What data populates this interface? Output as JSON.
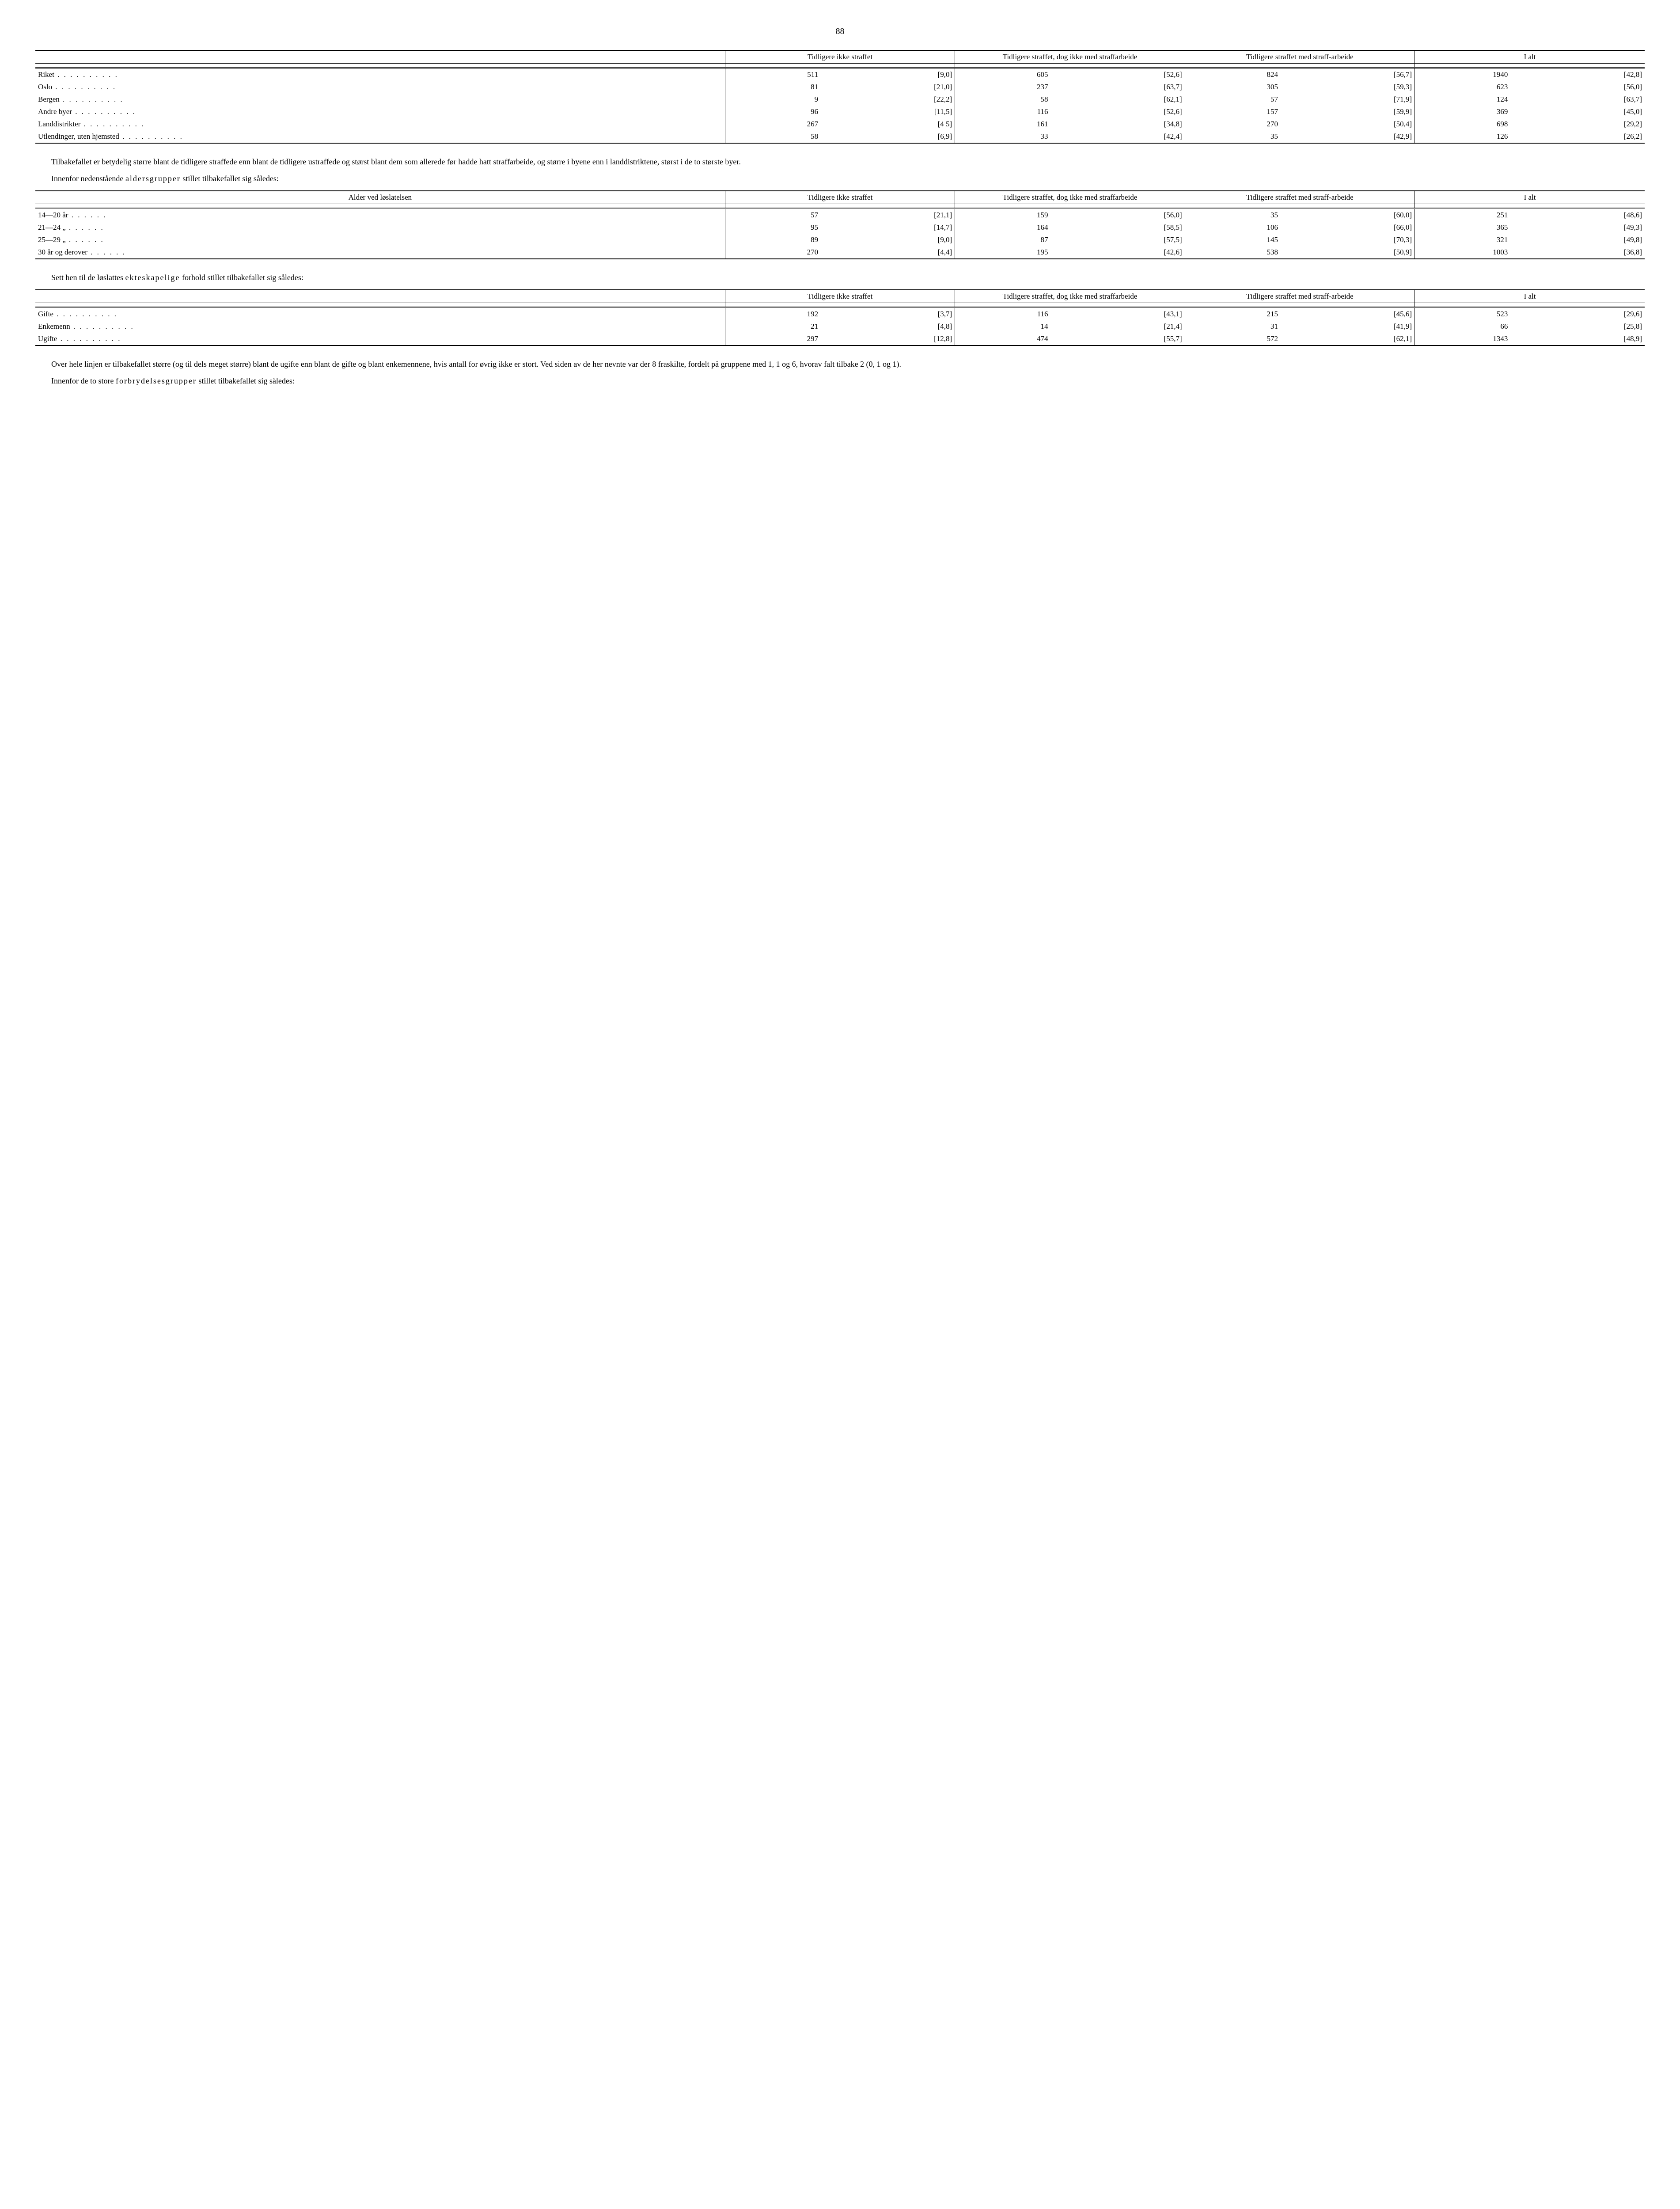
{
  "pageNumber": "88",
  "headers": {
    "col1": "Tidligere ikke straffet",
    "col2": "Tidligere straffet, dog ikke med straffarbeide",
    "col3": "Tidligere straffet med straff-arbeide",
    "col4": "I alt",
    "ageLabel": "Alder ved løslatelsen"
  },
  "table1": {
    "rows": [
      {
        "label": "Riket",
        "n1": "511",
        "p1": "[9,0]",
        "n2": "605",
        "p2": "[52,6]",
        "n3": "824",
        "p3": "[56,7]",
        "n4": "1940",
        "p4": "[42,8]"
      },
      {
        "label": "Oslo",
        "n1": "81",
        "p1": "[21,0]",
        "n2": "237",
        "p2": "[63,7]",
        "n3": "305",
        "p3": "[59,3]",
        "n4": "623",
        "p4": "[56,0]"
      },
      {
        "label": "Bergen",
        "n1": "9",
        "p1": "[22,2]",
        "n2": "58",
        "p2": "[62,1]",
        "n3": "57",
        "p3": "[71,9]",
        "n4": "124",
        "p4": "[63,7]"
      },
      {
        "label": "Andre byer",
        "n1": "96",
        "p1": "[11,5]",
        "n2": "116",
        "p2": "[52,6]",
        "n3": "157",
        "p3": "[59,9]",
        "n4": "369",
        "p4": "[45,0]"
      },
      {
        "label": "Landdistrikter",
        "n1": "267",
        "p1": "[4 5]",
        "n2": "161",
        "p2": "[34,8]",
        "n3": "270",
        "p3": "[50,4]",
        "n4": "698",
        "p4": "[29,2]"
      },
      {
        "label": "Utlendinger, uten hjemsted",
        "n1": "58",
        "p1": "[6,9]",
        "n2": "33",
        "p2": "[42,4]",
        "n3": "35",
        "p3": "[42,9]",
        "n4": "126",
        "p4": "[26,2]"
      }
    ]
  },
  "para1": "Tilbakefallet er betydelig større blant de tidligere straffede enn blant de tidligere ustraffede og størst blant dem som allerede før hadde hatt straffarbeide, og større i byene enn i landdistriktene, størst i de to største byer.",
  "para2a": "Innenfor nedenstående ",
  "para2b": "aldersgrupper",
  "para2c": " stillet tilbakefallet sig således:",
  "table2": {
    "rows": [
      {
        "label": "14—20 år",
        "n1": "57",
        "p1": "[21,1]",
        "n2": "159",
        "p2": "[56,0]",
        "n3": "35",
        "p3": "[60,0]",
        "n4": "251",
        "p4": "[48,6]"
      },
      {
        "label": "21—24 „",
        "n1": "95",
        "p1": "[14,7]",
        "n2": "164",
        "p2": "[58,5]",
        "n3": "106",
        "p3": "[66,0]",
        "n4": "365",
        "p4": "[49,3]"
      },
      {
        "label": "25—29 „",
        "n1": "89",
        "p1": "[9,0]",
        "n2": "87",
        "p2": "[57,5]",
        "n3": "145",
        "p3": "[70,3]",
        "n4": "321",
        "p4": "[49,8]"
      },
      {
        "label": "30 år og derover",
        "n1": "270",
        "p1": "[4,4]",
        "n2": "195",
        "p2": "[42,6]",
        "n3": "538",
        "p3": "[50,9]",
        "n4": "1003",
        "p4": "[36,8]"
      }
    ]
  },
  "para3a": "Sett hen til de løslattes ",
  "para3b": "ekteskapelige",
  "para3c": " forhold stillet tilbakefallet sig således:",
  "table3": {
    "rows": [
      {
        "label": "Gifte",
        "n1": "192",
        "p1": "[3,7]",
        "n2": "116",
        "p2": "[43,1]",
        "n3": "215",
        "p3": "[45,6]",
        "n4": "523",
        "p4": "[29,6]"
      },
      {
        "label": "Enkemenn",
        "n1": "21",
        "p1": "[4,8]",
        "n2": "14",
        "p2": "[21,4]",
        "n3": "31",
        "p3": "[41,9]",
        "n4": "66",
        "p4": "[25,8]"
      },
      {
        "label": "Ugifte",
        "n1": "297",
        "p1": "[12,8]",
        "n2": "474",
        "p2": "[55,7]",
        "n3": "572",
        "p3": "[62,1]",
        "n4": "1343",
        "p4": "[48,9]"
      }
    ]
  },
  "para4": "Over hele linjen er tilbakefallet større (og til dels meget større) blant de ugifte enn blant de gifte og blant enkemennene, hvis antall for øvrig ikke er stort. Ved siden av de her nevnte var der 8 fraskilte, fordelt på gruppene med 1, 1 og 6, hvorav falt tilbake 2 (0, 1 og 1).",
  "para5a": "Innenfor de to store ",
  "para5b": "forbrydelsesgrupper",
  "para5c": " stillet tilbakefallet sig således:"
}
